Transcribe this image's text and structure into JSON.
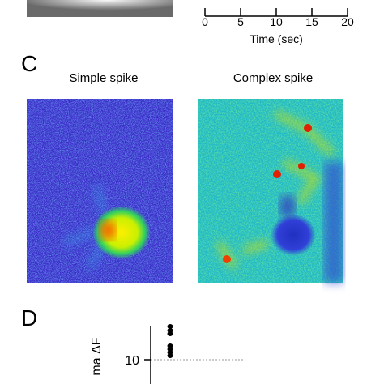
{
  "panel_b": {
    "xticks": [
      "0",
      "5",
      "10",
      "15",
      "20"
    ],
    "xlabel": "Time (sec)"
  },
  "panel_c": {
    "label": "C",
    "images": [
      {
        "title": "Simple spike"
      },
      {
        "title": "Complex spike"
      }
    ]
  },
  "panel_d": {
    "label": "D",
    "ylabel": "ma ΔF",
    "yticks": [
      "10"
    ]
  }
}
